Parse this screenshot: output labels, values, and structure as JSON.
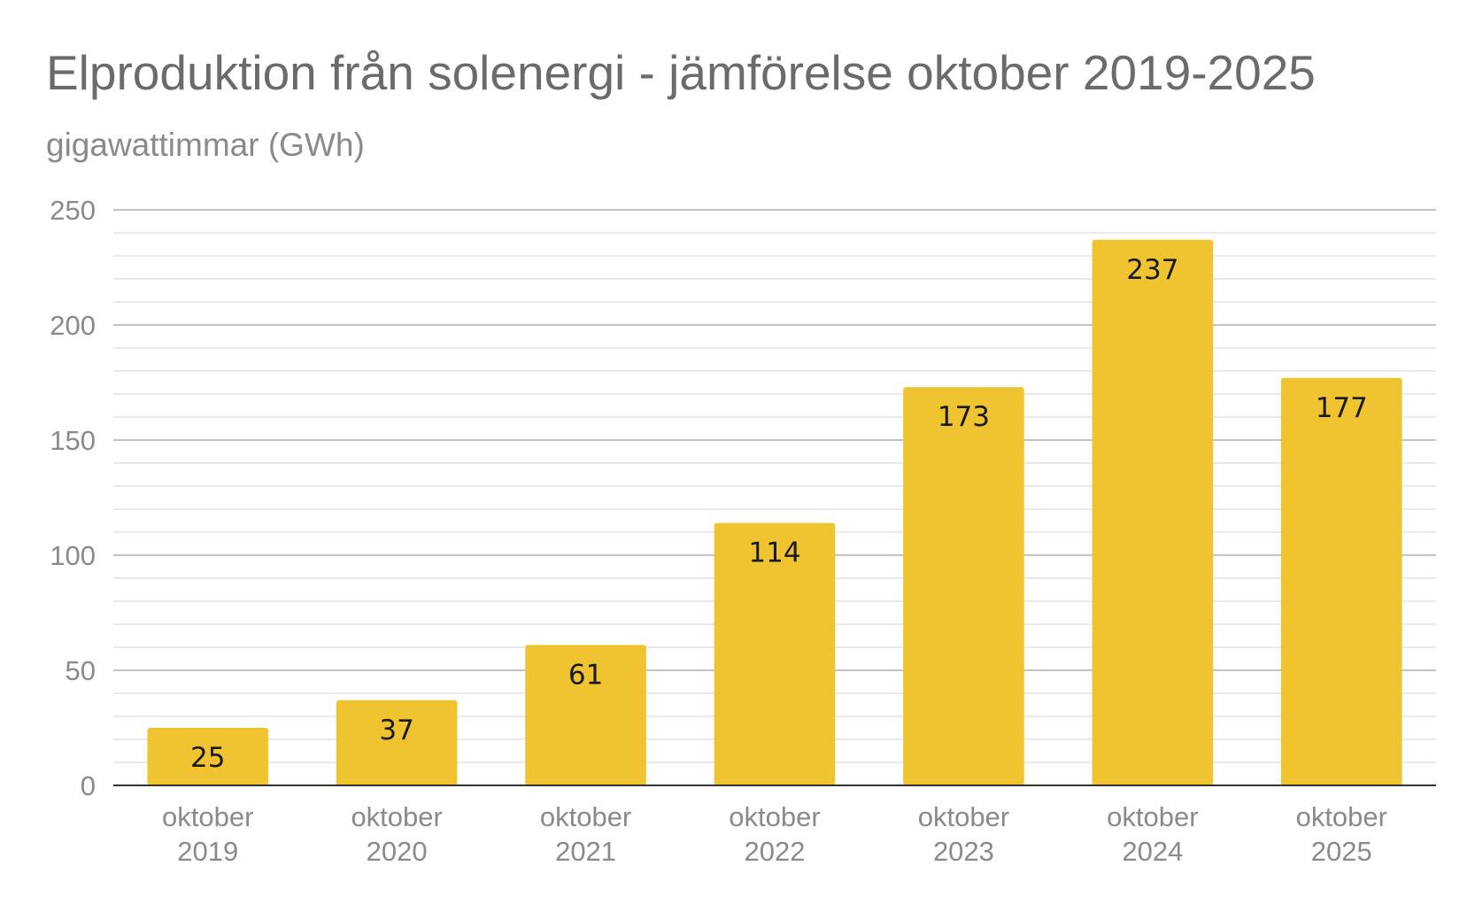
{
  "chart_data": {
    "type": "bar",
    "title": "Elproduktion från solenergi - jämförelse oktober 2019-2025",
    "subtitle": "gigawattimmar (GWh)",
    "categories": [
      [
        "oktober",
        "2019"
      ],
      [
        "oktober",
        "2020"
      ],
      [
        "oktober",
        "2021"
      ],
      [
        "oktober",
        "2022"
      ],
      [
        "oktober",
        "2023"
      ],
      [
        "oktober",
        "2024"
      ],
      [
        "oktober",
        "2025"
      ]
    ],
    "values": [
      25,
      37,
      61,
      114,
      173,
      237,
      177
    ],
    "data_labels": [
      "25",
      "37",
      "61",
      "114",
      "173",
      "237",
      "177"
    ],
    "ylim": [
      0,
      250
    ],
    "y_ticks": [
      "0",
      "50",
      "100",
      "150",
      "200",
      "250"
    ],
    "grid": true,
    "legend": "none",
    "bar_color": "#f0c431"
  }
}
